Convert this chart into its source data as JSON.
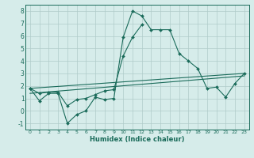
{
  "xlabel": "Humidex (Indice chaleur)",
  "x": [
    0,
    1,
    2,
    3,
    4,
    5,
    6,
    7,
    8,
    9,
    10,
    11,
    12,
    13,
    14,
    15,
    16,
    17,
    18,
    19,
    20,
    21,
    22,
    23
  ],
  "line1": [
    1.8,
    0.8,
    1.4,
    1.4,
    -1.0,
    -0.3,
    0.0,
    1.1,
    0.9,
    1.0,
    5.9,
    8.0,
    7.6,
    6.5,
    6.5,
    6.5,
    4.6,
    4.0,
    3.4,
    1.8,
    1.9,
    1.1,
    2.2,
    3.0
  ],
  "line2": [
    1.8,
    1.4,
    1.5,
    1.5,
    0.4,
    0.9,
    1.0,
    1.3,
    1.6,
    1.7,
    4.4,
    5.9,
    6.9,
    null,
    null,
    null,
    null,
    null,
    null,
    null,
    null,
    null,
    null,
    null
  ],
  "line3_x": [
    0,
    23
  ],
  "line3_y": [
    1.8,
    3.0
  ],
  "line4_x": [
    0,
    23
  ],
  "line4_y": [
    1.4,
    2.8
  ],
  "ylim": [
    -1.5,
    8.5
  ],
  "xlim": [
    -0.5,
    23.5
  ],
  "yticks": [
    -1,
    0,
    1,
    2,
    3,
    4,
    5,
    6,
    7,
    8
  ],
  "xticks": [
    0,
    1,
    2,
    3,
    4,
    5,
    6,
    7,
    8,
    9,
    10,
    11,
    12,
    13,
    14,
    15,
    16,
    17,
    18,
    19,
    20,
    21,
    22,
    23
  ],
  "bg_color": "#d6ecea",
  "grid_color": "#b0ccca",
  "line_color": "#1a6b5a"
}
